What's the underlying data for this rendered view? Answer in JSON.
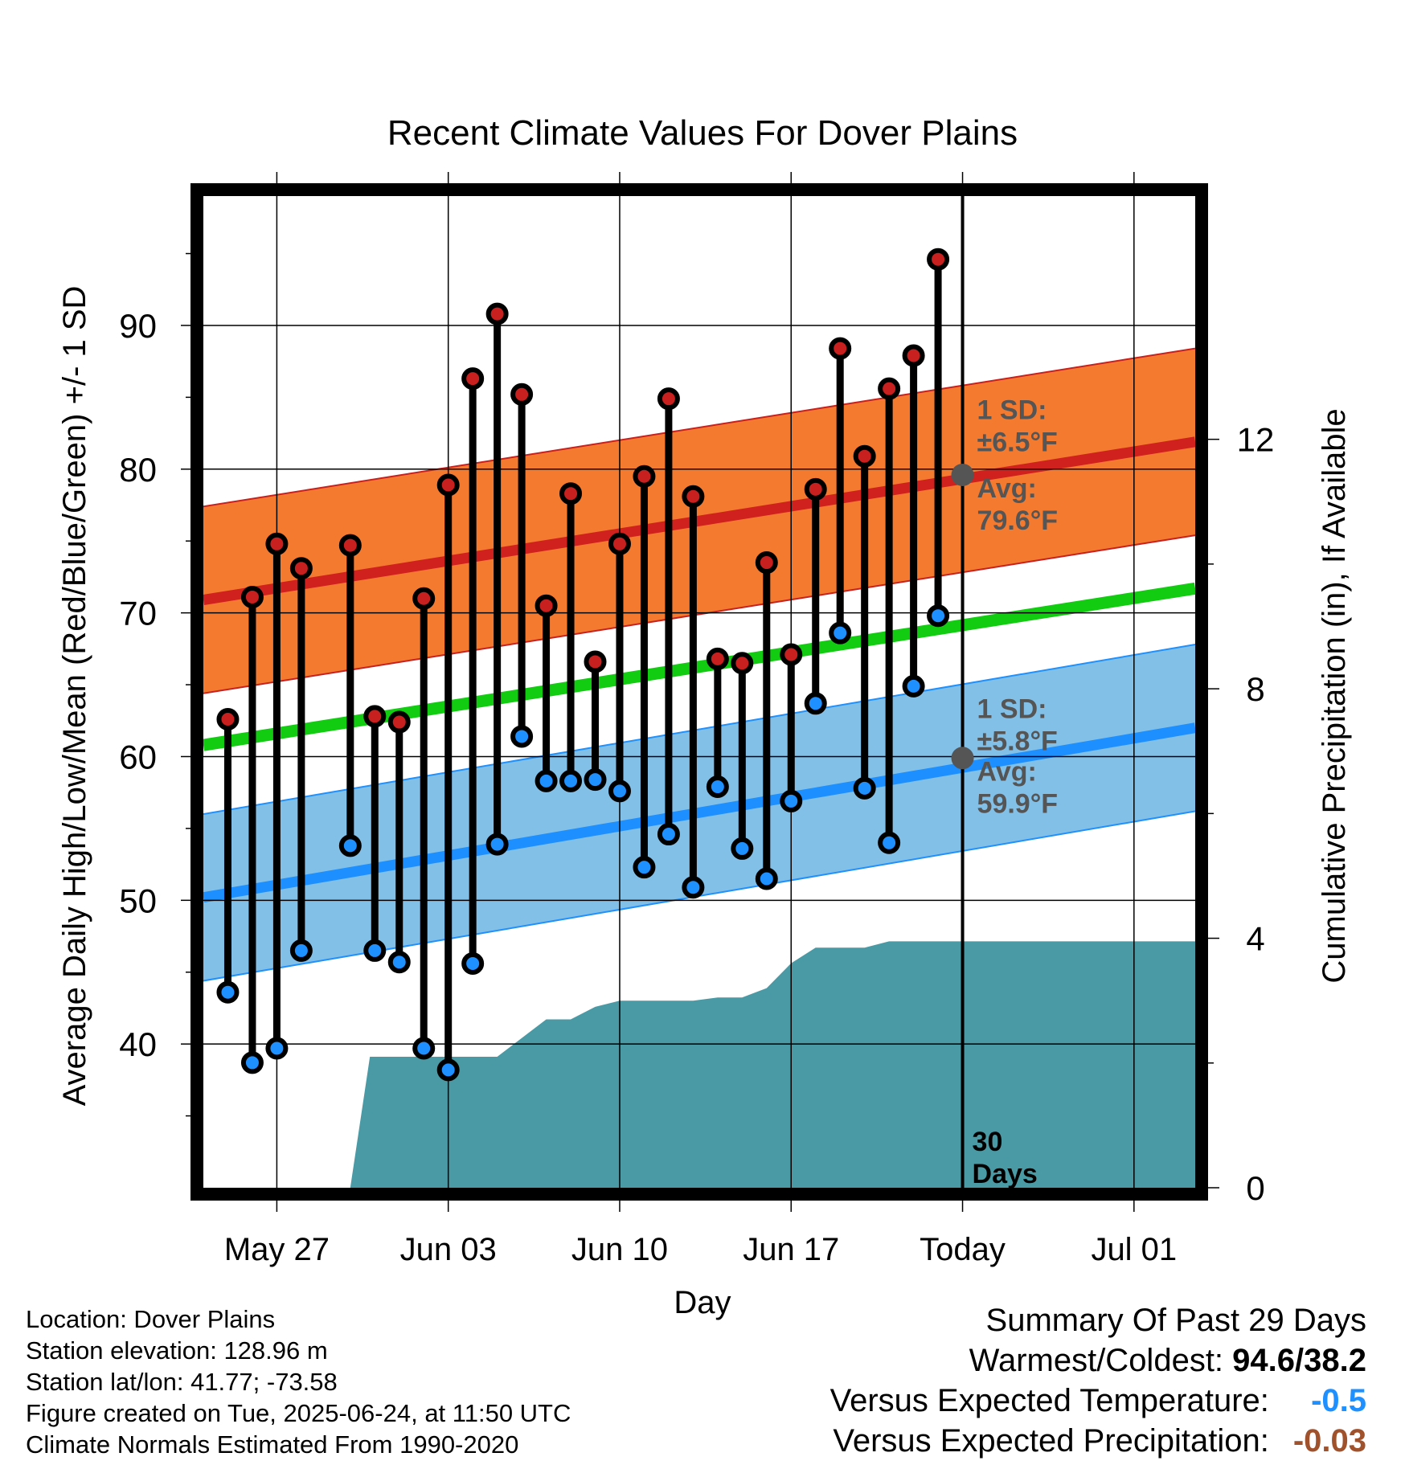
{
  "chart_data": {
    "type": "line",
    "title": "Recent Climate Values For Dover Plains",
    "xlabel": "Day",
    "ylabel": "Average Daily High/Low/Mean (Red/Blue/Green) +/- 1 SD",
    "y2label": "Cumulative Precipitation (in), If Available",
    "x_ticks": [
      "May 27",
      "Jun 03",
      "Jun 10",
      "Jun 17",
      "Today",
      "Jul 01"
    ],
    "x_tick_days": [
      -28,
      -21,
      -14,
      -7,
      0,
      7
    ],
    "x_range_days": [
      -31,
      9.5
    ],
    "today_day": 0,
    "ylim": [
      30,
      99
    ],
    "y_ticks": [
      40,
      50,
      60,
      70,
      80,
      90
    ],
    "y2lim": [
      0,
      15.9
    ],
    "y2_ticks": [
      0,
      4,
      8,
      12
    ],
    "days": [
      -30,
      -29,
      -28,
      -27,
      -25,
      -24,
      -23,
      -22,
      -21,
      -20,
      -19,
      -18,
      -17,
      -16,
      -15,
      -14,
      -13,
      -12,
      -11,
      -10,
      -9,
      -8,
      -7,
      -6,
      -5,
      -4,
      -3,
      -2,
      -1
    ],
    "series": [
      {
        "name": "High",
        "color": "#c8201e",
        "values": [
          62.6,
          71.1,
          74.8,
          73.1,
          74.7,
          62.8,
          62.4,
          71.0,
          78.9,
          86.3,
          90.8,
          85.2,
          70.5,
          78.3,
          66.6,
          74.8,
          79.5,
          84.9,
          78.1,
          66.8,
          66.5,
          73.5,
          67.1,
          78.6,
          88.4,
          80.9,
          85.6,
          87.9,
          94.6
        ]
      },
      {
        "name": "Low",
        "color": "#1e90ff",
        "values": [
          43.6,
          38.7,
          39.7,
          46.5,
          53.8,
          46.5,
          45.7,
          39.7,
          38.2,
          45.6,
          53.9,
          61.4,
          58.3,
          58.3,
          58.4,
          57.6,
          52.3,
          54.6,
          50.9,
          57.9,
          53.6,
          51.5,
          56.9,
          63.7,
          68.6,
          57.8,
          54.0,
          64.9,
          69.8
        ]
      }
    ],
    "normals": {
      "day_start": -31,
      "day_end": 9.5,
      "avg_high": [
        70.9,
        81.9
      ],
      "avg_low": [
        50.2,
        62.0
      ],
      "avg_mean": [
        60.8,
        71.7
      ],
      "high_sd": 6.5,
      "low_sd": 5.8
    },
    "precip": {
      "color": "#4a9aa5",
      "days": [
        -31,
        -25,
        -24.2,
        -20,
        -19,
        -18,
        -17,
        -16,
        -15,
        -14,
        -13,
        -12,
        -11,
        -10,
        -9,
        -8,
        -7,
        -6,
        -5,
        -4,
        -3,
        -2,
        9.5
      ],
      "values": [
        0,
        0,
        2.1,
        2.1,
        2.1,
        2.4,
        2.7,
        2.7,
        2.9,
        3.0,
        3.0,
        3.0,
        3.0,
        3.05,
        3.05,
        3.2,
        3.6,
        3.85,
        3.85,
        3.85,
        3.95,
        3.95,
        3.95
      ]
    },
    "annotations": {
      "high_sd_label": "1 SD:",
      "high_sd_value": "±6.5°F",
      "high_avg_label": "Avg:",
      "high_avg_value": "79.6°F",
      "low_sd_label": "1 SD:",
      "low_sd_value": "±5.8°F",
      "low_avg_label": "Avg:",
      "low_avg_value": "59.9°F",
      "days_number": "30",
      "days_word": "Days",
      "today_avg_high": 79.6,
      "today_avg_low": 59.9
    }
  },
  "info": {
    "location": "Location: Dover Plains",
    "elevation": "Station elevation: 128.96 m",
    "latlon": "Station lat/lon: 41.77; -73.58",
    "created": "Figure created on Tue, 2025-06-24, at 11:50 UTC",
    "normals": "Climate Normals Estimated From 1990-2020"
  },
  "summary": {
    "title": "Summary Of Past 29 Days",
    "warmest_label": "Warmest/Coldest:",
    "warmest_value": "94.6/38.2",
    "temp_label": "Versus Expected Temperature:",
    "temp_value": "-0.5",
    "temp_color": "#1e90ff",
    "precip_label": "Versus Expected Precipitation:",
    "precip_value": "-0.03",
    "precip_color": "#a0522d"
  }
}
